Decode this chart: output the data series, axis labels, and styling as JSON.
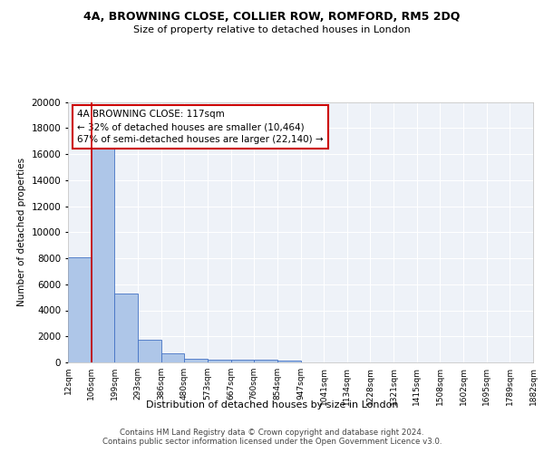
{
  "title1": "4A, BROWNING CLOSE, COLLIER ROW, ROMFORD, RM5 2DQ",
  "title2": "Size of property relative to detached houses in London",
  "xlabel": "Distribution of detached houses by size in London",
  "ylabel": "Number of detached properties",
  "bin_labels": [
    "12sqm",
    "106sqm",
    "199sqm",
    "293sqm",
    "386sqm",
    "480sqm",
    "573sqm",
    "667sqm",
    "760sqm",
    "854sqm",
    "947sqm",
    "1041sqm",
    "1134sqm",
    "1228sqm",
    "1321sqm",
    "1415sqm",
    "1508sqm",
    "1602sqm",
    "1695sqm",
    "1789sqm",
    "1882sqm"
  ],
  "bar_values": [
    8100,
    16500,
    5300,
    1750,
    700,
    300,
    230,
    200,
    180,
    130,
    0,
    0,
    0,
    0,
    0,
    0,
    0,
    0,
    0,
    0
  ],
  "bar_color": "#aec6e8",
  "bar_edge_color": "#4472c4",
  "bg_color": "#eef2f8",
  "grid_color": "#ffffff",
  "vline_color": "#cc0000",
  "annotation_text": "4A BROWNING CLOSE: 117sqm\n← 32% of detached houses are smaller (10,464)\n67% of semi-detached houses are larger (22,140) →",
  "annotation_box_color": "#ffffff",
  "annotation_box_edge": "#cc0000",
  "footer_text": "Contains HM Land Registry data © Crown copyright and database right 2024.\nContains public sector information licensed under the Open Government Licence v3.0.",
  "ylim": [
    0,
    20000
  ],
  "yticks": [
    0,
    2000,
    4000,
    6000,
    8000,
    10000,
    12000,
    14000,
    16000,
    18000,
    20000
  ]
}
